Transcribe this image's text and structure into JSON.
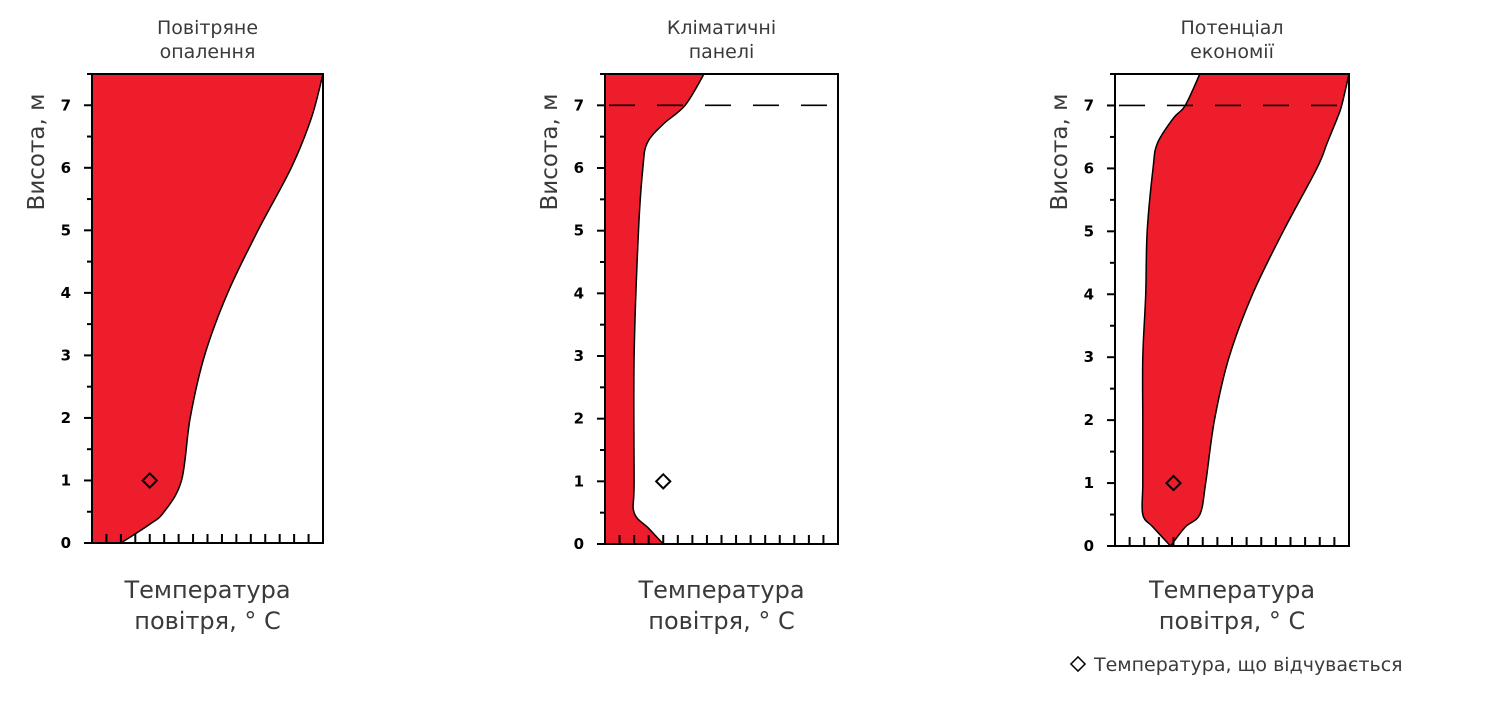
{
  "fill_color": "#ee1d2b",
  "legend": {
    "marker": "◇",
    "text": "Температура, що відчувається"
  },
  "chart_data": [
    {
      "type": "area",
      "title": [
        "Повітряне",
        "опалення"
      ],
      "xlabel": [
        "Температура",
        "повітря, ° C"
      ],
      "ylabel": "Висота, м",
      "ylim": [
        0,
        7.5
      ],
      "yticks": [
        0,
        1,
        2,
        3,
        4,
        5,
        6,
        7
      ],
      "xlim": [
        0,
        16
      ],
      "x_minor_ticks": 16,
      "dashed_line_y": null,
      "band": [
        {
          "y": 0,
          "left": 0,
          "right": 2
        },
        {
          "y": 0.3,
          "left": 0,
          "right": 4
        },
        {
          "y": 0.5,
          "left": 0,
          "right": 5
        },
        {
          "y": 1,
          "left": 0,
          "right": 6.2
        },
        {
          "y": 2,
          "left": 0,
          "right": 6.8
        },
        {
          "y": 3,
          "left": 0,
          "right": 7.8
        },
        {
          "y": 4,
          "left": 0,
          "right": 9.4
        },
        {
          "y": 5,
          "left": 0,
          "right": 11.5
        },
        {
          "y": 6,
          "left": 0,
          "right": 13.8
        },
        {
          "y": 6.8,
          "left": 0,
          "right": 15.2
        },
        {
          "y": 7.5,
          "left": 0,
          "right": 16
        }
      ],
      "felt_temperature": {
        "x": 4,
        "y": 1
      }
    },
    {
      "type": "area",
      "title": [
        "Кліматичні",
        "панелі"
      ],
      "xlabel": [
        "Температура",
        "повітря, ° C"
      ],
      "ylabel": "Висота, м",
      "ylim": [
        0,
        7.5
      ],
      "yticks": [
        0,
        1,
        2,
        3,
        4,
        5,
        6,
        7
      ],
      "xlim": [
        0,
        16
      ],
      "x_minor_ticks": 16,
      "dashed_line_y": 7,
      "band": [
        {
          "y": 0,
          "left": 0,
          "right": 4
        },
        {
          "y": 0.25,
          "left": 0,
          "right": 3
        },
        {
          "y": 0.5,
          "left": 0,
          "right": 2
        },
        {
          "y": 1,
          "left": 0,
          "right": 2
        },
        {
          "y": 3,
          "left": 0,
          "right": 2
        },
        {
          "y": 5,
          "left": 0,
          "right": 2.3
        },
        {
          "y": 6,
          "left": 0,
          "right": 2.6
        },
        {
          "y": 6.4,
          "left": 0,
          "right": 2.9
        },
        {
          "y": 6.7,
          "left": 0,
          "right": 4
        },
        {
          "y": 7,
          "left": 0,
          "right": 5.5
        },
        {
          "y": 7.5,
          "left": 0,
          "right": 6.8
        }
      ],
      "felt_temperature": {
        "x": 4,
        "y": 1
      }
    },
    {
      "type": "area",
      "title": [
        "Потенціал",
        "економії"
      ],
      "xlabel": [
        "Температура",
        "повітря, ° C"
      ],
      "ylabel": "Висота, м",
      "ylim": [
        0,
        7.5
      ],
      "yticks": [
        0,
        1,
        2,
        3,
        4,
        5,
        6,
        7
      ],
      "xlim": [
        0,
        16
      ],
      "x_minor_ticks": 16,
      "dashed_line_y": 7,
      "band": [
        {
          "y": 0,
          "left": 3.8,
          "right": 3.8
        },
        {
          "y": 0.3,
          "left": 2.6,
          "right": 4.8
        },
        {
          "y": 0.5,
          "left": 1.9,
          "right": 5.8
        },
        {
          "y": 1,
          "left": 1.9,
          "right": 6.2
        },
        {
          "y": 2,
          "left": 1.9,
          "right": 6.8
        },
        {
          "y": 3,
          "left": 1.9,
          "right": 7.8
        },
        {
          "y": 4,
          "left": 2.1,
          "right": 9.4
        },
        {
          "y": 5,
          "left": 2.2,
          "right": 11.5
        },
        {
          "y": 6,
          "left": 2.6,
          "right": 13.8
        },
        {
          "y": 6.4,
          "left": 2.9,
          "right": 14.5
        },
        {
          "y": 6.8,
          "left": 4,
          "right": 15.2
        },
        {
          "y": 7,
          "left": 4.8,
          "right": 15.5
        },
        {
          "y": 7.5,
          "left": 5.8,
          "right": 16
        }
      ],
      "felt_temperature": {
        "x": 4,
        "y": 1
      }
    }
  ]
}
